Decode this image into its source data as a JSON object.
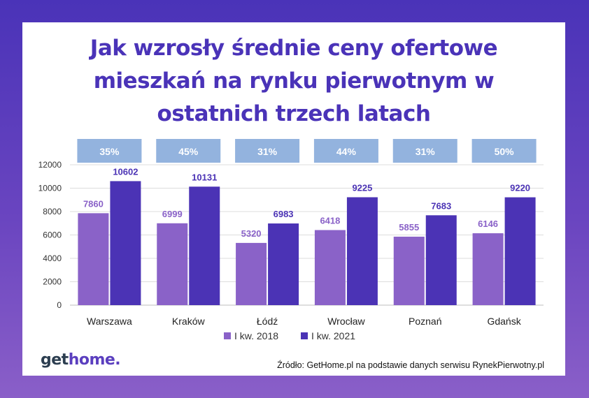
{
  "chart_data": {
    "type": "bar",
    "title_lines": [
      "Jak wzrosły średnie ceny ofertowe",
      "mieszkań na rynku pierwotnym w",
      "ostatnich trzech latach"
    ],
    "categories": [
      "Warszawa",
      "Kraków",
      "Łódź",
      "Wrocław",
      "Poznań",
      "Gdańsk"
    ],
    "series": [
      {
        "name": "I kw.  2018",
        "values": [
          7860,
          6999,
          5320,
          6418,
          5855,
          6146
        ],
        "color": "#8a62c8"
      },
      {
        "name": "I kw. 2021",
        "values": [
          10602,
          10131,
          6983,
          9225,
          7683,
          9220
        ],
        "color": "#4b33b5"
      }
    ],
    "growth_labels": [
      "35%",
      "45%",
      "31%",
      "44%",
      "31%",
      "50%"
    ],
    "ylim": [
      0,
      12000
    ],
    "yticks": [
      "0",
      "2000",
      "4000",
      "6000",
      "8000",
      "10000",
      "12000"
    ],
    "grid": true,
    "legend_position": "bottom"
  },
  "logo": {
    "get": "get",
    "home": "home."
  },
  "source": "Źródło: GetHome.pl na podstawie danych serwisu RynekPierwotny.pl",
  "colors": {
    "background_top": "#4a33b8",
    "title": "#4a33b8",
    "bar_2018": "#8a62c8",
    "bar_2021": "#4b33b5",
    "growth_box": "#93b3de"
  }
}
